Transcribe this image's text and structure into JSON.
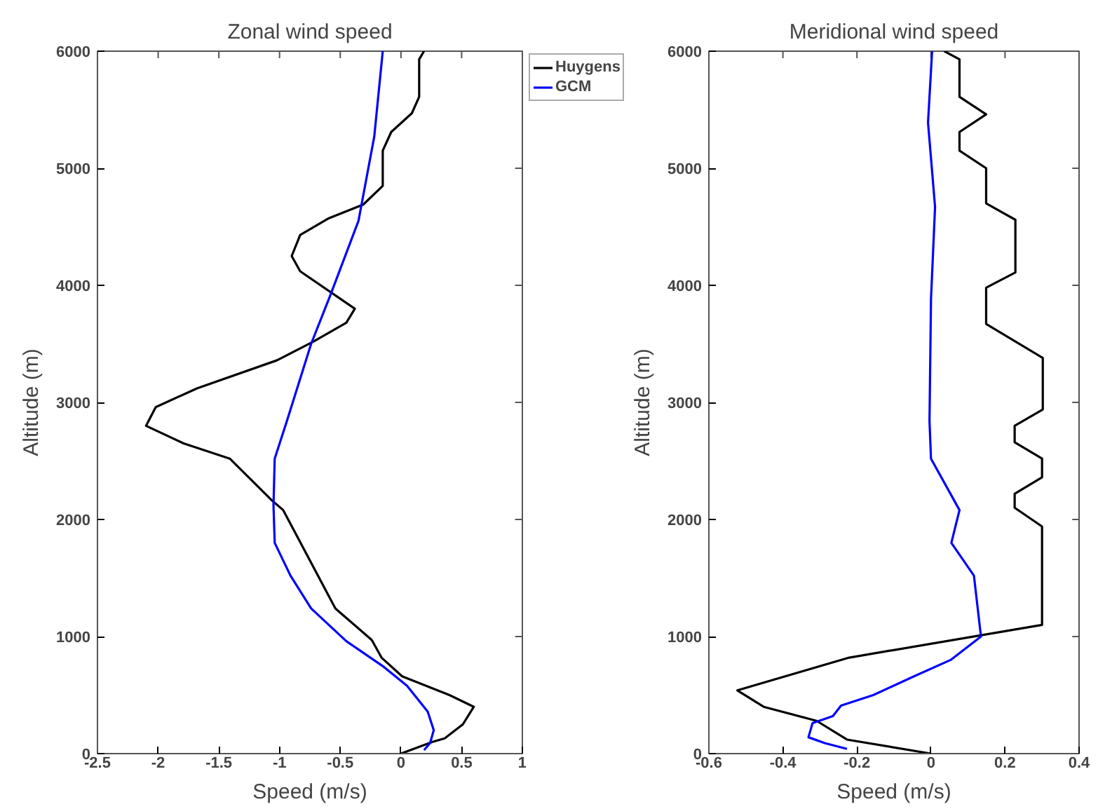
{
  "chart_data": [
    {
      "type": "line",
      "title": "Zonal wind speed",
      "xlabel": "Speed (m/s)",
      "ylabel": "Altitude (m)",
      "xlim": [
        -2.5,
        1
      ],
      "ylim": [
        0,
        6000
      ],
      "xticks": [
        -2.5,
        -2,
        -1.5,
        -1,
        -0.5,
        0,
        0.5,
        1
      ],
      "yticks": [
        0,
        1000,
        2000,
        3000,
        4000,
        5000,
        6000
      ],
      "grid": false,
      "legend": "top right",
      "series": [
        {
          "name": "Huygens",
          "color": "#000000",
          "x": [
            0.19,
            0.15,
            0.15,
            0.09,
            -0.08,
            -0.15,
            -0.15,
            -0.31,
            -0.6,
            -0.83,
            -0.9,
            -0.83,
            -0.38,
            -0.45,
            -0.72,
            -1.02,
            -1.68,
            -2.02,
            -2.1,
            -1.79,
            -1.41,
            -1.06,
            -0.97,
            -0.54,
            -0.24,
            -0.16,
            0.01,
            0.4,
            0.6,
            0.51,
            0.36,
            0.26,
            0.0
          ],
          "values": [
            6000,
            5930,
            5610,
            5470,
            5310,
            5150,
            4850,
            4690,
            4570,
            4430,
            4250,
            4120,
            3800,
            3680,
            3520,
            3360,
            3120,
            2960,
            2800,
            2650,
            2520,
            2160,
            2080,
            1240,
            970,
            820,
            660,
            500,
            400,
            250,
            130,
            100,
            0
          ]
        },
        {
          "name": "GCM",
          "color": "#0000ff",
          "x": [
            -0.15,
            -0.22,
            -0.35,
            -0.58,
            -0.74,
            -0.94,
            -1.04,
            -1.05,
            -1.04,
            -0.91,
            -0.74,
            -0.45,
            -0.14,
            0.05,
            0.22,
            0.27,
            0.24,
            0.19
          ],
          "values": [
            6000,
            5270,
            4550,
            3920,
            3500,
            2840,
            2520,
            2120,
            1800,
            1520,
            1240,
            960,
            740,
            580,
            360,
            200,
            90,
            30
          ]
        }
      ]
    },
    {
      "type": "line",
      "title": "Meridional wind speed",
      "xlabel": "Speed (m/s)",
      "ylabel": "Altitude (m)",
      "xlim": [
        -0.6,
        0.4
      ],
      "ylim": [
        0,
        6000
      ],
      "xticks": [
        -0.6,
        -0.4,
        -0.2,
        0,
        0.2,
        0.4
      ],
      "yticks": [
        0,
        1000,
        2000,
        3000,
        4000,
        5000,
        6000
      ],
      "grid": false,
      "series": [
        {
          "color": "#000000",
          "x": [
            0.036,
            0.077,
            0.077,
            0.149,
            0.077,
            0.077,
            0.149,
            0.149,
            0.228,
            0.228,
            0.149,
            0.149,
            0.302,
            0.302,
            0.226,
            0.226,
            0.3,
            0.3,
            0.226,
            0.226,
            0.3,
            0.3,
            -0.221,
            -0.523,
            -0.452,
            -0.309,
            -0.227,
            0.0
          ],
          "values": [
            6000,
            5930,
            5610,
            5460,
            5310,
            5150,
            5000,
            4700,
            4560,
            4110,
            3980,
            3670,
            3380,
            2940,
            2800,
            2660,
            2520,
            2360,
            2220,
            2100,
            1940,
            1100,
            820,
            540,
            400,
            280,
            120,
            0
          ]
        },
        {
          "color": "#0000ff",
          "x": [
            0.003,
            -0.008,
            0.011,
            0.0,
            -0.004,
            0.0,
            0.077,
            0.055,
            0.116,
            0.135,
            0.053,
            -0.046,
            -0.156,
            -0.243,
            -0.265,
            -0.32,
            -0.331,
            -0.287,
            -0.227
          ],
          "values": [
            6000,
            5390,
            4670,
            3880,
            2840,
            2520,
            2080,
            1800,
            1520,
            1000,
            800,
            660,
            500,
            410,
            320,
            260,
            140,
            90,
            40
          ]
        }
      ]
    }
  ]
}
